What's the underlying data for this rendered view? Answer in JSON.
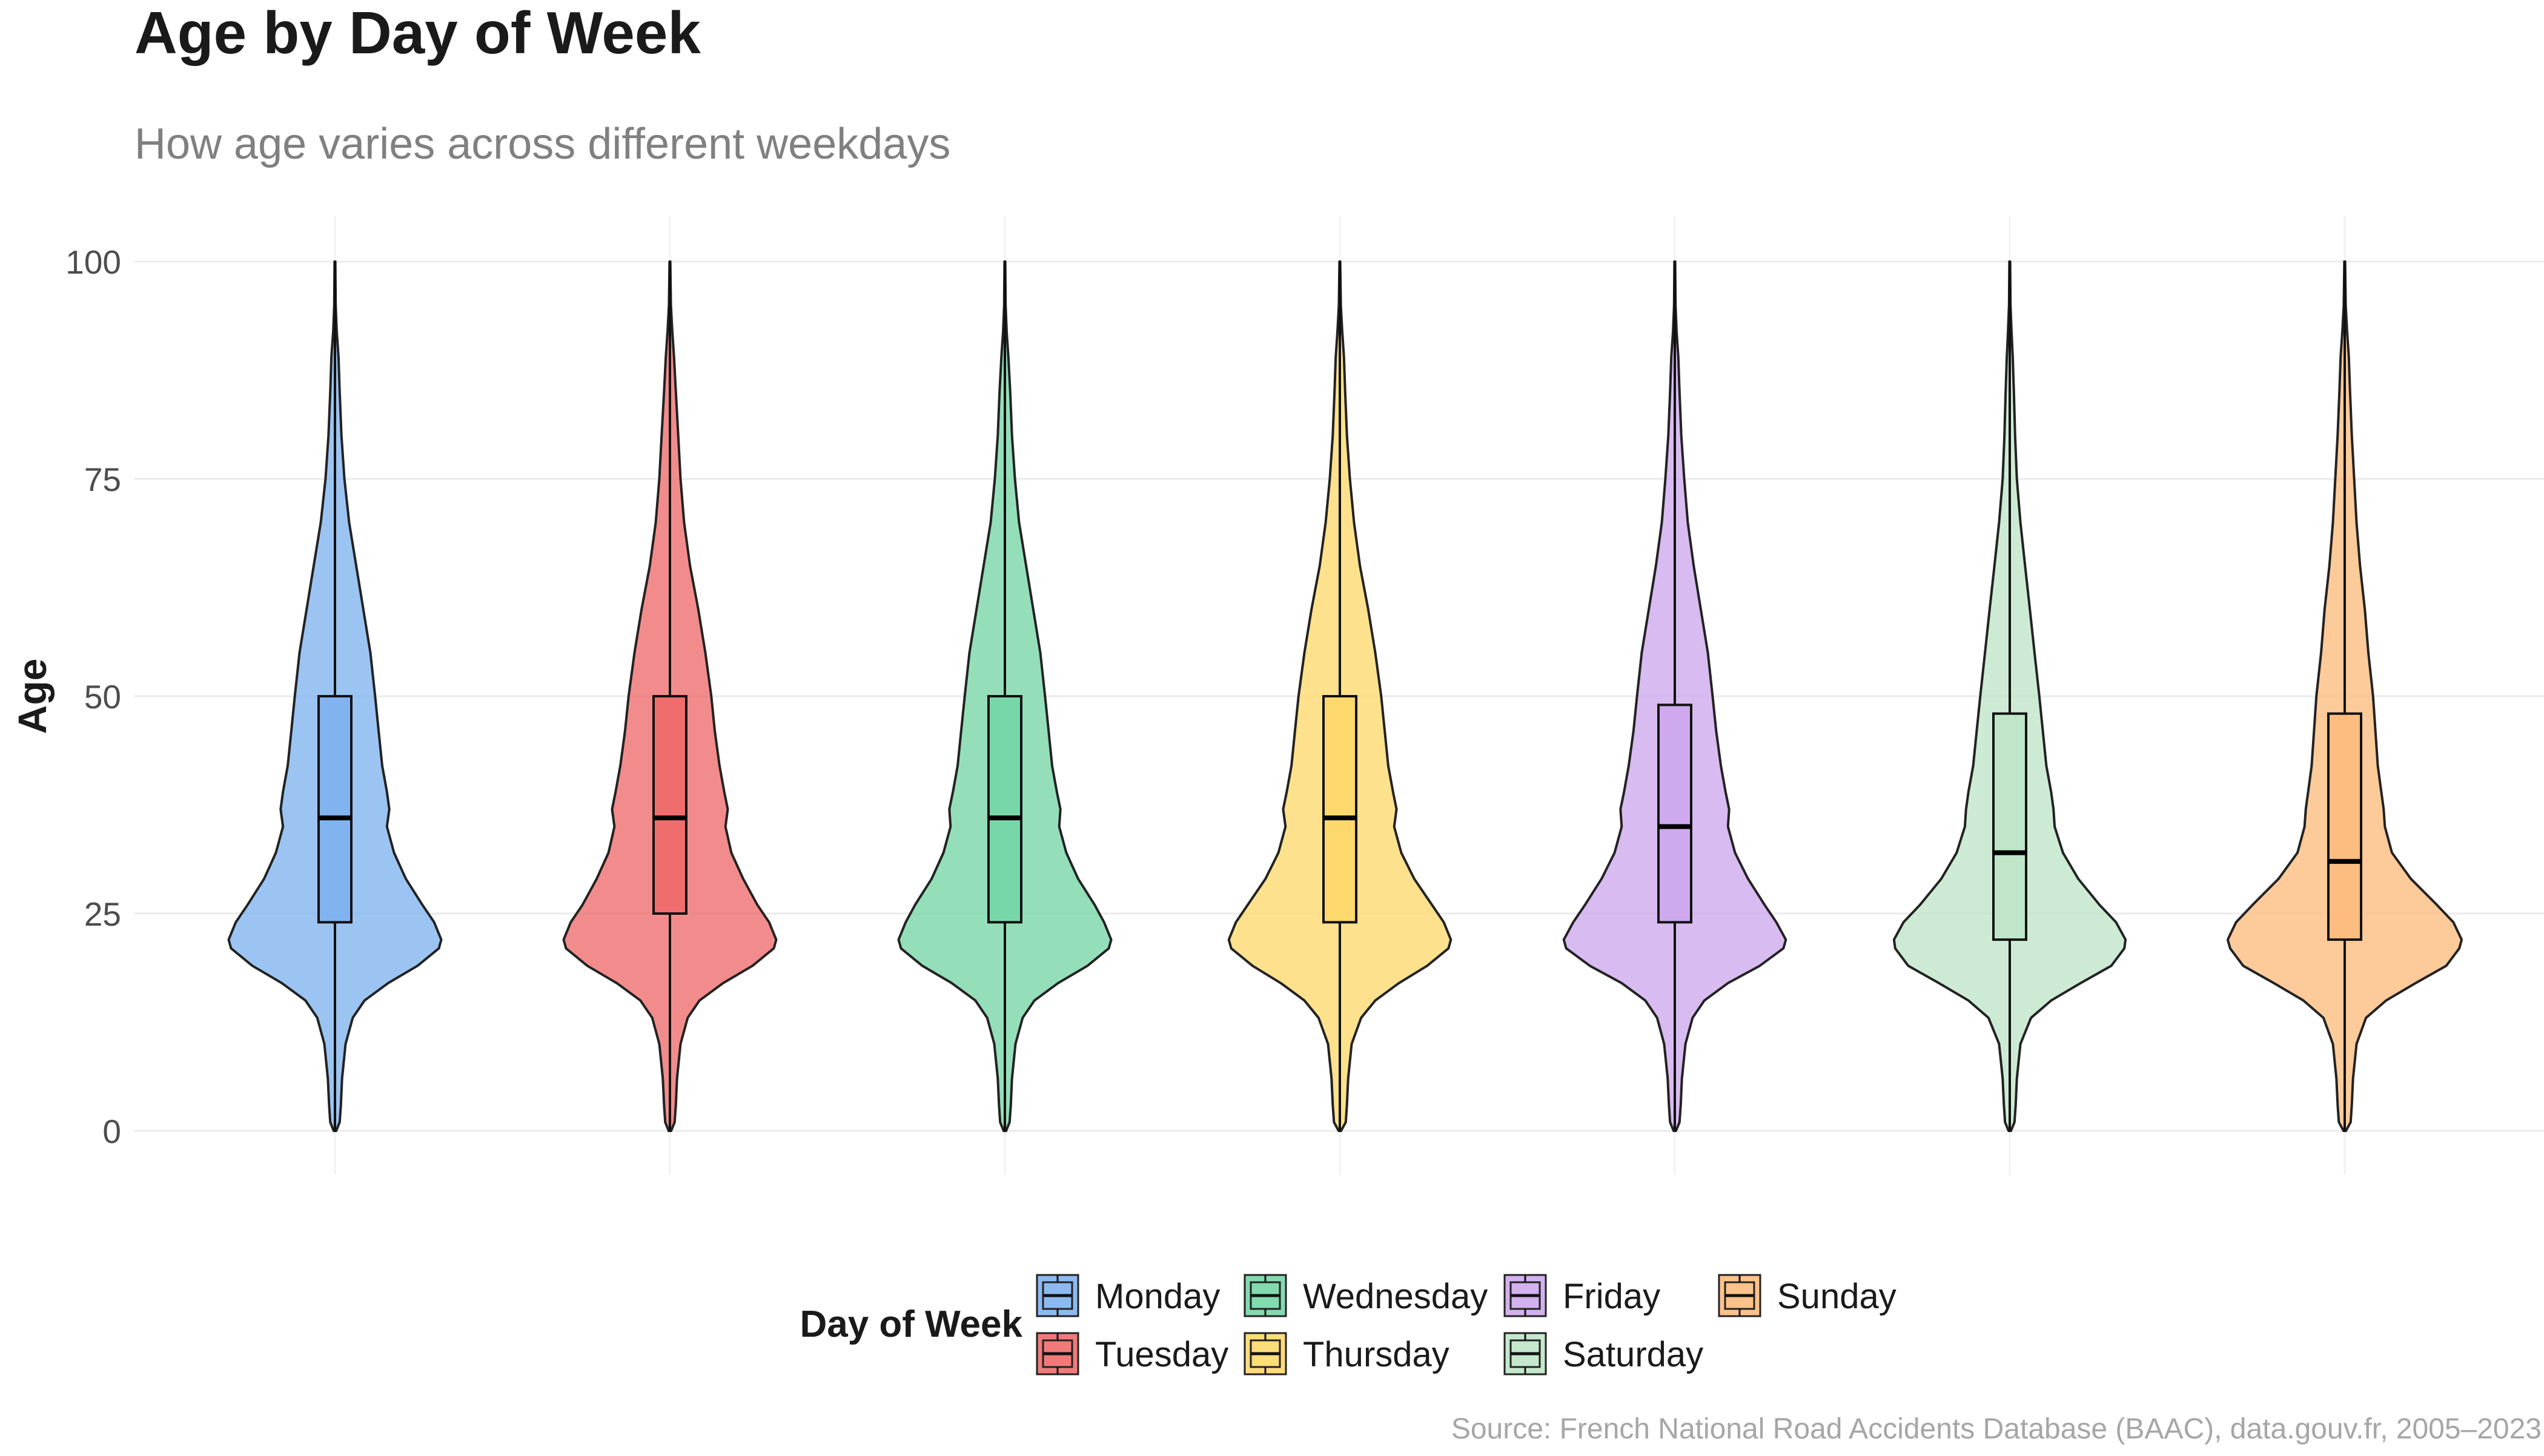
{
  "chart_data": {
    "type": "violin",
    "title": "Age by Day of Week",
    "subtitle": "How age varies across different weekdays",
    "xlabel": "",
    "ylabel": "Age",
    "ylim": [
      0,
      100
    ],
    "yticks": [
      0,
      25,
      50,
      75,
      100
    ],
    "grid": true,
    "legend": {
      "title": "Day of Week",
      "position": "bottom"
    },
    "caption": "Source: French National Road Accidents Database (BAAC), data.gouv.fr, 2005–2023",
    "series": [
      {
        "name": "Monday",
        "color": "#7FB3EE",
        "box": {
          "q1": 24,
          "median": 36,
          "q3": 50,
          "whisker_low": 0,
          "whisker_high": 89
        },
        "max": 100,
        "density": [
          [
            0,
            0.01
          ],
          [
            1,
            0.04
          ],
          [
            3,
            0.05
          ],
          [
            6,
            0.06
          ],
          [
            10,
            0.09
          ],
          [
            13,
            0.15
          ],
          [
            15,
            0.25
          ],
          [
            17,
            0.45
          ],
          [
            19,
            0.7
          ],
          [
            21,
            0.88
          ],
          [
            22,
            0.9
          ],
          [
            24,
            0.84
          ],
          [
            26,
            0.74
          ],
          [
            29,
            0.6
          ],
          [
            32,
            0.5
          ],
          [
            35,
            0.44
          ],
          [
            37,
            0.46
          ],
          [
            39,
            0.44
          ],
          [
            42,
            0.4
          ],
          [
            46,
            0.37
          ],
          [
            50,
            0.34
          ],
          [
            55,
            0.3
          ],
          [
            60,
            0.24
          ],
          [
            65,
            0.18
          ],
          [
            70,
            0.12
          ],
          [
            75,
            0.08
          ],
          [
            80,
            0.055
          ],
          [
            85,
            0.04
          ],
          [
            89,
            0.03
          ],
          [
            92,
            0.015
          ],
          [
            95,
            0.006
          ],
          [
            100,
            0.003
          ]
        ]
      },
      {
        "name": "Tuesday",
        "color": "#EE6B6B",
        "box": {
          "q1": 25,
          "median": 36,
          "q3": 50,
          "whisker_low": 0,
          "whisker_high": 87
        },
        "max": 100,
        "density": [
          [
            0,
            0.01
          ],
          [
            1,
            0.04
          ],
          [
            3,
            0.05
          ],
          [
            6,
            0.06
          ],
          [
            10,
            0.09
          ],
          [
            13,
            0.15
          ],
          [
            15,
            0.25
          ],
          [
            17,
            0.45
          ],
          [
            19,
            0.7
          ],
          [
            21,
            0.88
          ],
          [
            22,
            0.9
          ],
          [
            24,
            0.84
          ],
          [
            26,
            0.74
          ],
          [
            29,
            0.62
          ],
          [
            32,
            0.52
          ],
          [
            35,
            0.47
          ],
          [
            37,
            0.49
          ],
          [
            39,
            0.46
          ],
          [
            42,
            0.42
          ],
          [
            46,
            0.38
          ],
          [
            50,
            0.35
          ],
          [
            55,
            0.3
          ],
          [
            60,
            0.24
          ],
          [
            65,
            0.17
          ],
          [
            70,
            0.12
          ],
          [
            75,
            0.09
          ],
          [
            80,
            0.07
          ],
          [
            85,
            0.05
          ],
          [
            89,
            0.035
          ],
          [
            92,
            0.02
          ],
          [
            95,
            0.008
          ],
          [
            100,
            0.003
          ]
        ]
      },
      {
        "name": "Wednesday",
        "color": "#76D6A6",
        "box": {
          "q1": 24,
          "median": 36,
          "q3": 50,
          "whisker_low": 0,
          "whisker_high": 89
        },
        "max": 100,
        "density": [
          [
            0,
            0.01
          ],
          [
            1,
            0.04
          ],
          [
            3,
            0.05
          ],
          [
            6,
            0.06
          ],
          [
            10,
            0.09
          ],
          [
            13,
            0.15
          ],
          [
            15,
            0.25
          ],
          [
            17,
            0.45
          ],
          [
            19,
            0.7
          ],
          [
            21,
            0.88
          ],
          [
            22,
            0.9
          ],
          [
            24,
            0.84
          ],
          [
            26,
            0.76
          ],
          [
            29,
            0.62
          ],
          [
            32,
            0.52
          ],
          [
            35,
            0.46
          ],
          [
            37,
            0.47
          ],
          [
            39,
            0.44
          ],
          [
            42,
            0.4
          ],
          [
            46,
            0.37
          ],
          [
            50,
            0.34
          ],
          [
            55,
            0.3
          ],
          [
            60,
            0.24
          ],
          [
            65,
            0.18
          ],
          [
            70,
            0.12
          ],
          [
            75,
            0.085
          ],
          [
            80,
            0.06
          ],
          [
            85,
            0.045
          ],
          [
            89,
            0.03
          ],
          [
            92,
            0.015
          ],
          [
            95,
            0.006
          ],
          [
            100,
            0.003
          ]
        ]
      },
      {
        "name": "Thursday",
        "color": "#FDD86C",
        "box": {
          "q1": 24,
          "median": 36,
          "q3": 50,
          "whisker_low": 0,
          "whisker_high": 89
        },
        "max": 100,
        "density": [
          [
            0,
            0.01
          ],
          [
            1,
            0.05
          ],
          [
            3,
            0.06
          ],
          [
            6,
            0.07
          ],
          [
            10,
            0.1
          ],
          [
            13,
            0.18
          ],
          [
            15,
            0.3
          ],
          [
            17,
            0.5
          ],
          [
            19,
            0.74
          ],
          [
            21,
            0.92
          ],
          [
            22,
            0.94
          ],
          [
            24,
            0.88
          ],
          [
            26,
            0.78
          ],
          [
            29,
            0.63
          ],
          [
            32,
            0.52
          ],
          [
            35,
            0.46
          ],
          [
            37,
            0.48
          ],
          [
            39,
            0.45
          ],
          [
            42,
            0.41
          ],
          [
            46,
            0.38
          ],
          [
            50,
            0.35
          ],
          [
            55,
            0.3
          ],
          [
            60,
            0.24
          ],
          [
            65,
            0.17
          ],
          [
            70,
            0.12
          ],
          [
            75,
            0.085
          ],
          [
            80,
            0.06
          ],
          [
            85,
            0.045
          ],
          [
            89,
            0.035
          ],
          [
            92,
            0.02
          ],
          [
            95,
            0.008
          ],
          [
            100,
            0.003
          ]
        ]
      },
      {
        "name": "Friday",
        "color": "#CDA8EC",
        "box": {
          "q1": 24,
          "median": 35,
          "q3": 49,
          "whisker_low": 0,
          "whisker_high": 86
        },
        "max": 100,
        "density": [
          [
            0,
            0.01
          ],
          [
            1,
            0.04
          ],
          [
            3,
            0.05
          ],
          [
            6,
            0.06
          ],
          [
            10,
            0.09
          ],
          [
            13,
            0.15
          ],
          [
            15,
            0.25
          ],
          [
            17,
            0.45
          ],
          [
            19,
            0.72
          ],
          [
            21,
            0.92
          ],
          [
            22,
            0.94
          ],
          [
            24,
            0.86
          ],
          [
            26,
            0.76
          ],
          [
            29,
            0.62
          ],
          [
            32,
            0.51
          ],
          [
            35,
            0.45
          ],
          [
            37,
            0.46
          ],
          [
            39,
            0.43
          ],
          [
            42,
            0.39
          ],
          [
            46,
            0.35
          ],
          [
            50,
            0.32
          ],
          [
            55,
            0.28
          ],
          [
            60,
            0.22
          ],
          [
            65,
            0.16
          ],
          [
            70,
            0.11
          ],
          [
            75,
            0.08
          ],
          [
            80,
            0.055
          ],
          [
            85,
            0.04
          ],
          [
            89,
            0.03
          ],
          [
            92,
            0.015
          ],
          [
            95,
            0.006
          ],
          [
            100,
            0.003
          ]
        ]
      },
      {
        "name": "Saturday",
        "color": "#BFE6C8",
        "box": {
          "q1": 22,
          "median": 32,
          "q3": 48,
          "whisker_low": 0,
          "whisker_high": 87
        },
        "max": 100,
        "density": [
          [
            0,
            0.01
          ],
          [
            1,
            0.04
          ],
          [
            3,
            0.05
          ],
          [
            6,
            0.06
          ],
          [
            10,
            0.09
          ],
          [
            13,
            0.18
          ],
          [
            15,
            0.35
          ],
          [
            17,
            0.6
          ],
          [
            19,
            0.86
          ],
          [
            21,
            0.97
          ],
          [
            22,
            0.98
          ],
          [
            24,
            0.9
          ],
          [
            26,
            0.76
          ],
          [
            29,
            0.58
          ],
          [
            32,
            0.45
          ],
          [
            35,
            0.38
          ],
          [
            37,
            0.37
          ],
          [
            39,
            0.35
          ],
          [
            42,
            0.31
          ],
          [
            46,
            0.28
          ],
          [
            50,
            0.25
          ],
          [
            55,
            0.21
          ],
          [
            60,
            0.17
          ],
          [
            65,
            0.13
          ],
          [
            70,
            0.09
          ],
          [
            75,
            0.06
          ],
          [
            80,
            0.045
          ],
          [
            85,
            0.035
          ],
          [
            89,
            0.025
          ],
          [
            92,
            0.015
          ],
          [
            95,
            0.006
          ],
          [
            100,
            0.003
          ]
        ]
      },
      {
        "name": "Sunday",
        "color": "#FDBB7E",
        "box": {
          "q1": 22,
          "median": 31,
          "q3": 48,
          "whisker_low": 0,
          "whisker_high": 87
        },
        "max": 100,
        "density": [
          [
            0,
            0.01
          ],
          [
            1,
            0.05
          ],
          [
            3,
            0.06
          ],
          [
            6,
            0.07
          ],
          [
            10,
            0.1
          ],
          [
            13,
            0.18
          ],
          [
            15,
            0.35
          ],
          [
            17,
            0.6
          ],
          [
            19,
            0.86
          ],
          [
            21,
            0.97
          ],
          [
            22,
            0.99
          ],
          [
            24,
            0.92
          ],
          [
            26,
            0.78
          ],
          [
            29,
            0.56
          ],
          [
            32,
            0.4
          ],
          [
            35,
            0.34
          ],
          [
            37,
            0.33
          ],
          [
            39,
            0.31
          ],
          [
            42,
            0.28
          ],
          [
            46,
            0.26
          ],
          [
            50,
            0.24
          ],
          [
            55,
            0.2
          ],
          [
            60,
            0.17
          ],
          [
            65,
            0.13
          ],
          [
            70,
            0.1
          ],
          [
            75,
            0.08
          ],
          [
            80,
            0.06
          ],
          [
            85,
            0.045
          ],
          [
            89,
            0.035
          ],
          [
            92,
            0.02
          ],
          [
            95,
            0.008
          ],
          [
            100,
            0.003
          ]
        ]
      }
    ]
  }
}
